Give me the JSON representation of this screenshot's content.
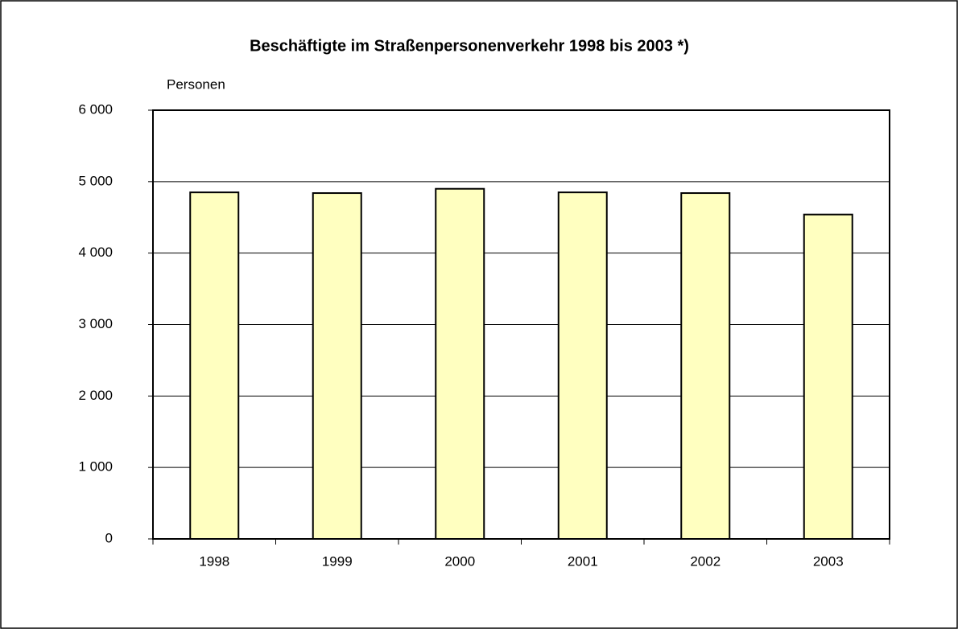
{
  "chart_data": {
    "type": "bar",
    "title": "Beschäftigte im Straßenpersonenverkehr 1998 bis 2003 *)",
    "y_label": "Personen",
    "categories": [
      "1998",
      "1999",
      "2000",
      "2001",
      "2002",
      "2003"
    ],
    "values": [
      4850,
      4840,
      4900,
      4850,
      4840,
      4540
    ],
    "color": "#ffffc0",
    "ylim": [
      0,
      6000
    ],
    "yticks": [
      0,
      {
        "value": 1000,
        "label": "1 000"
      },
      {
        "value": 2000,
        "label": "2 000"
      },
      {
        "value": 3000,
        "label": "3 000"
      },
      {
        "value": 4000,
        "label": "4 000"
      },
      {
        "value": 5000,
        "label": "5 000"
      },
      {
        "value": 6000,
        "label": "6 000"
      }
    ],
    "grid": true
  }
}
